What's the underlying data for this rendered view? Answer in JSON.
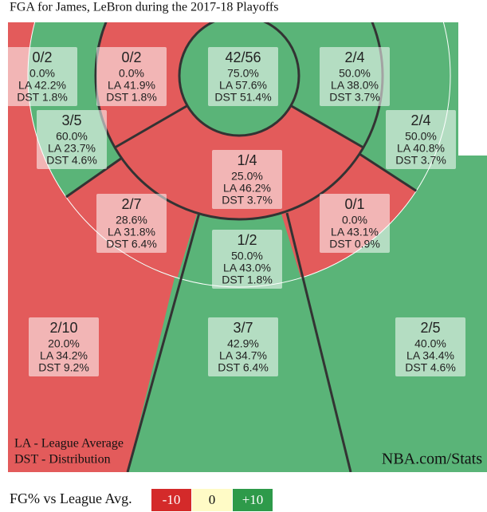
{
  "title": "FGA for James, LeBron during the 2017-18 Playoffs",
  "zones": [
    {
      "fg": "0/2",
      "pct": "0.0%",
      "la": "LA 42.2%",
      "dst": "DST 1.8%"
    },
    {
      "fg": "0/2",
      "pct": "0.0%",
      "la": "LA 41.9%",
      "dst": "DST 1.8%"
    },
    {
      "fg": "42/56",
      "pct": "75.0%",
      "la": "LA 57.6%",
      "dst": "DST 51.4%"
    },
    {
      "fg": "2/4",
      "pct": "50.0%",
      "la": "LA 38.0%",
      "dst": "DST 3.7%"
    },
    {
      "fg": "3/5",
      "pct": "60.0%",
      "la": "LA 23.7%",
      "dst": "DST 4.6%"
    },
    {
      "fg": "2/4",
      "pct": "50.0%",
      "la": "LA 40.8%",
      "dst": "DST 3.7%"
    },
    {
      "fg": "1/4",
      "pct": "25.0%",
      "la": "LA 46.2%",
      "dst": "DST 3.7%"
    },
    {
      "fg": "2/7",
      "pct": "28.6%",
      "la": "LA 31.8%",
      "dst": "DST 6.4%"
    },
    {
      "fg": "0/1",
      "pct": "0.0%",
      "la": "LA 43.1%",
      "dst": "DST 0.9%"
    },
    {
      "fg": "1/2",
      "pct": "50.0%",
      "la": "LA 43.0%",
      "dst": "DST 1.8%"
    },
    {
      "fg": "2/10",
      "pct": "20.0%",
      "la": "LA 34.2%",
      "dst": "DST 9.2%"
    },
    {
      "fg": "3/7",
      "pct": "42.9%",
      "la": "LA 34.7%",
      "dst": "DST 6.4%"
    },
    {
      "fg": "2/5",
      "pct": "40.0%",
      "la": "LA 34.4%",
      "dst": "DST 4.6%"
    }
  ],
  "notes": [
    "LA - League Average",
    "DST - Distribution"
  ],
  "source": "NBA.com/Stats",
  "legend": {
    "label": "FG% vs League Avg.",
    "items": [
      "-10",
      "0",
      "+10"
    ]
  }
}
